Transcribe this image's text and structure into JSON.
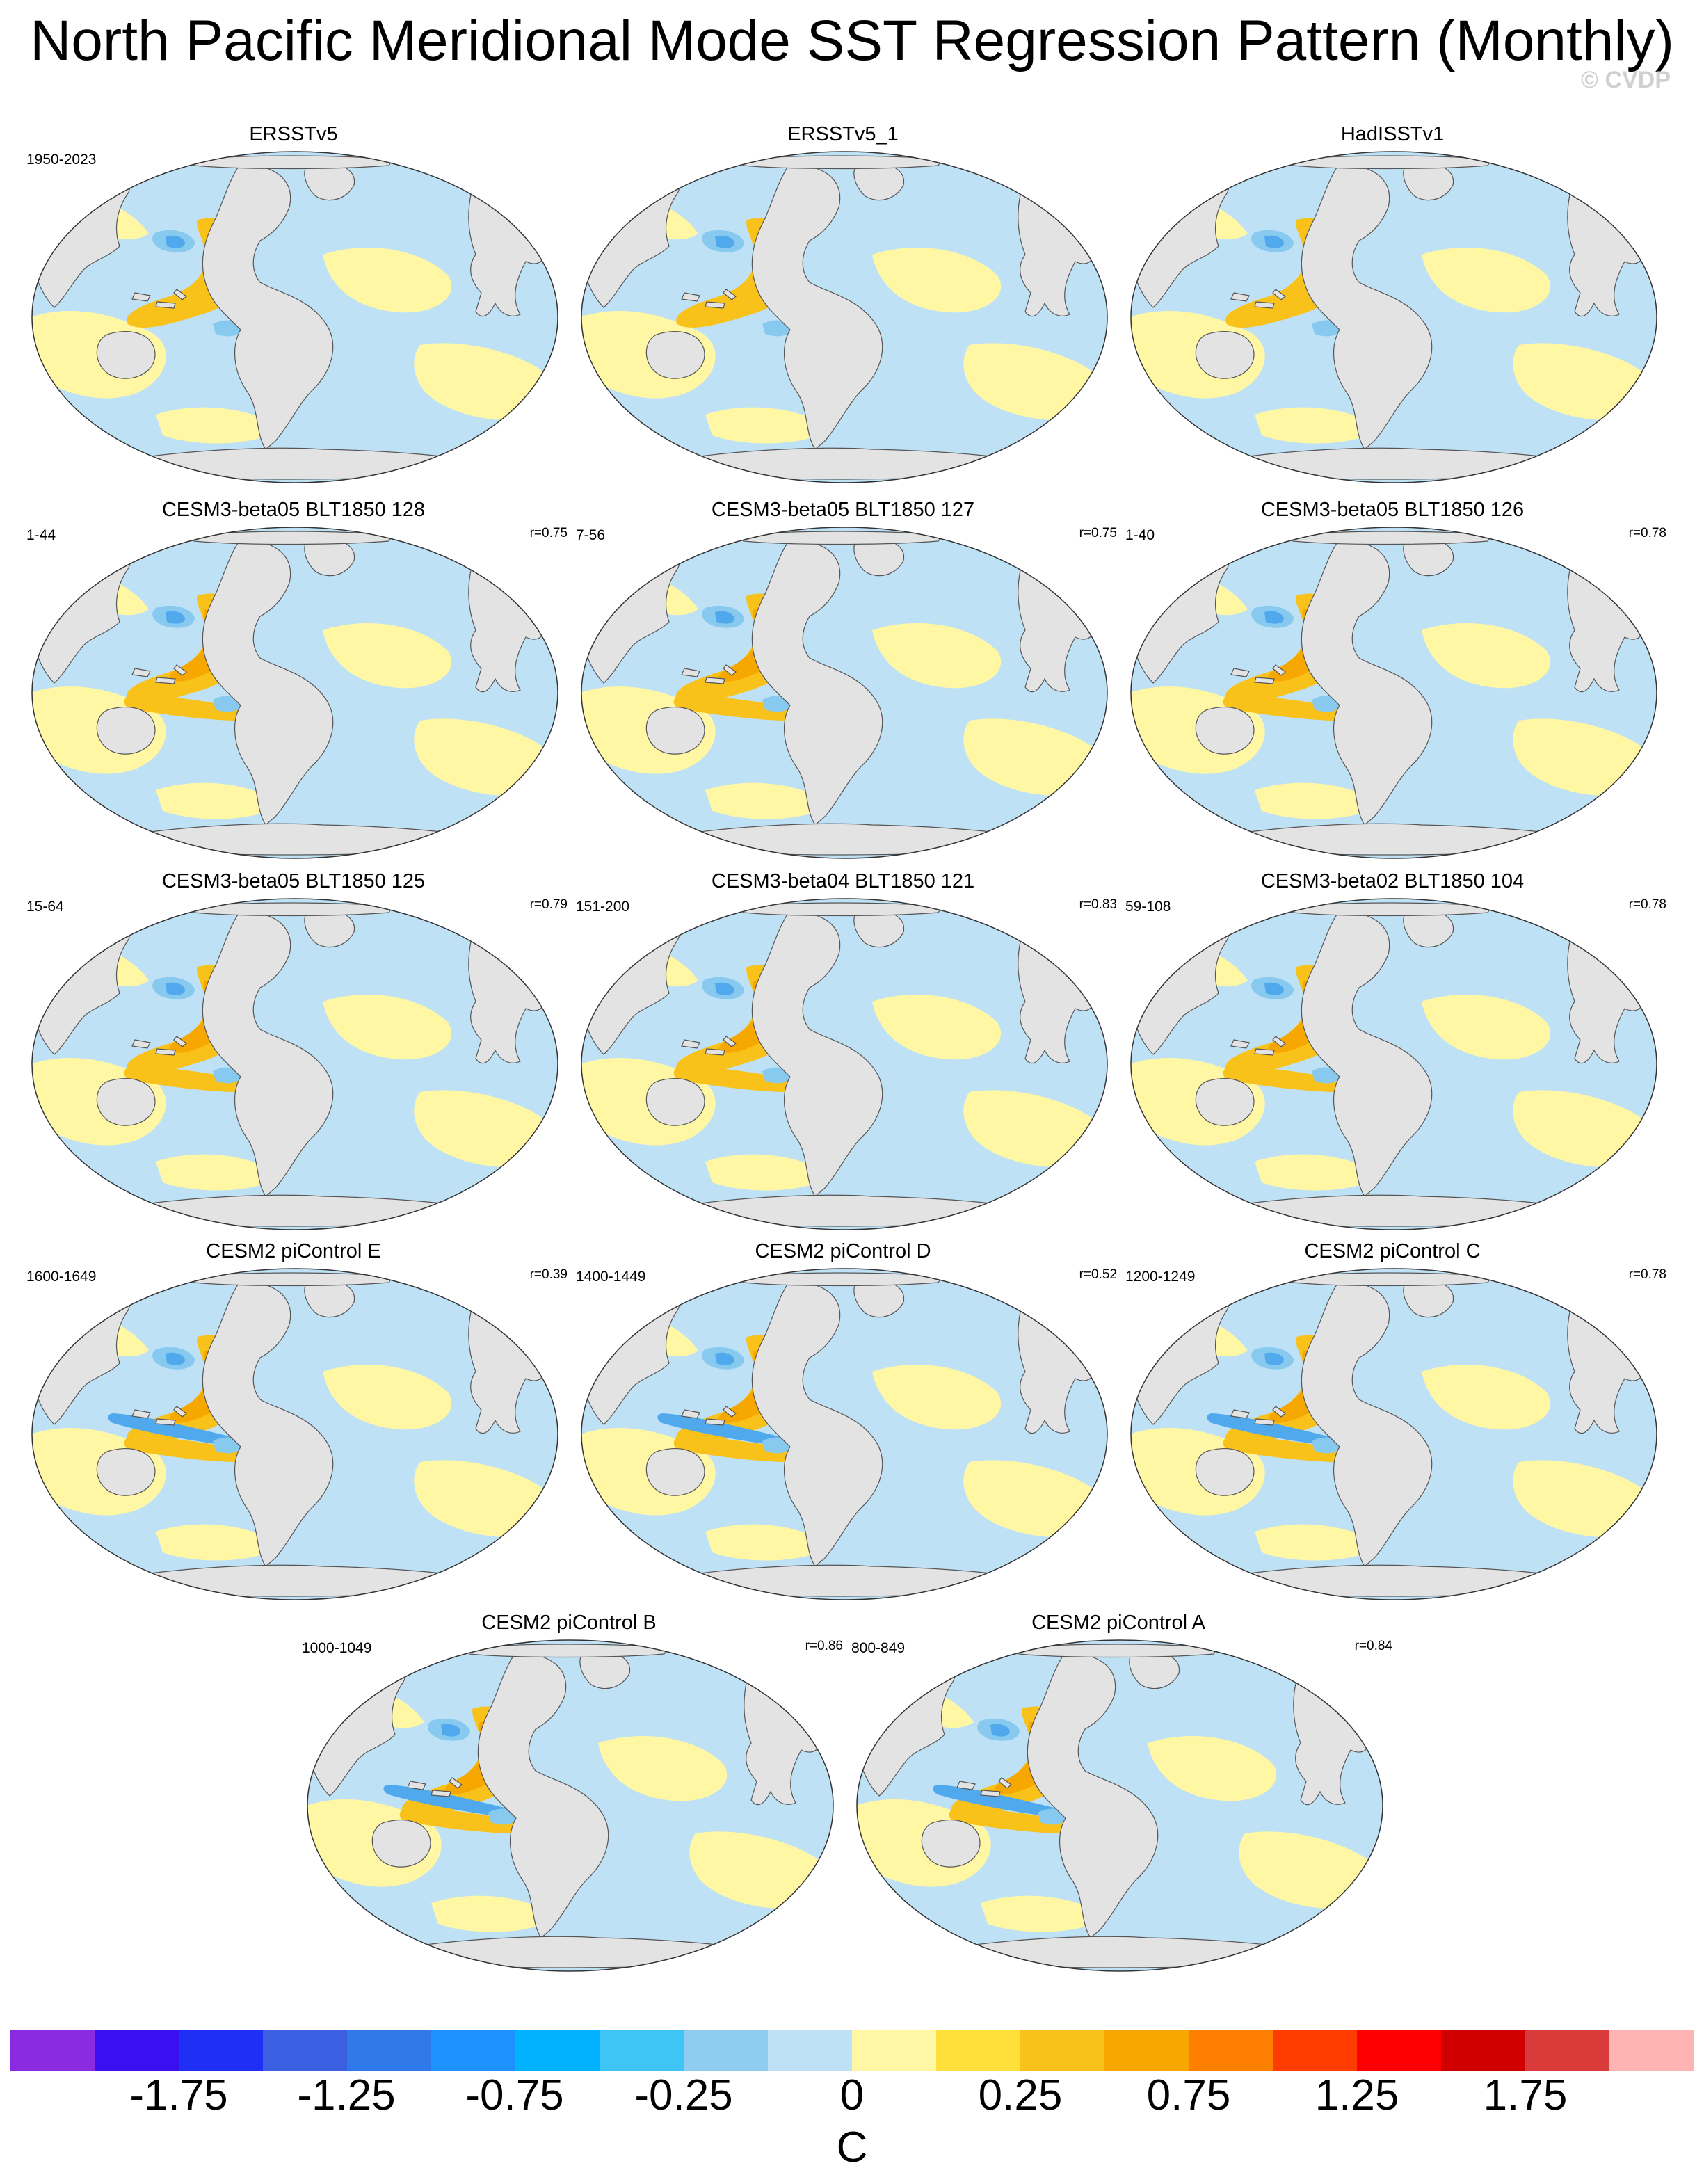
{
  "title": "North Pacific Meridional Mode SST Regression Pattern (Monthly)",
  "watermark": "© CVDP",
  "palette": {
    "land": "#e3e3e3",
    "ocean_neg": "#bfe1f6",
    "ocean_pos": "#fff7a3",
    "warm": "#f9c21a",
    "warm_strong": "#f7a800",
    "hot": "#f28c00",
    "cool": "#87c9ef",
    "cold": "#4fa9ec"
  },
  "panels": [
    {
      "id": "p1",
      "title": "ERSSTv5",
      "period": "1950-2023",
      "corr": "",
      "pattern": "obs"
    },
    {
      "id": "p2",
      "title": "ERSSTv5_1",
      "period": "",
      "corr": "",
      "pattern": "obs"
    },
    {
      "id": "p3",
      "title": "HadISSTv1",
      "period": "",
      "corr": "",
      "pattern": "obs"
    },
    {
      "id": "p4",
      "title": "CESM3-beta05 BLT1850 128",
      "period": "1-44",
      "corr": "r=0.75",
      "pattern": "model"
    },
    {
      "id": "p5",
      "title": "CESM3-beta05 BLT1850 127",
      "period": "7-56",
      "corr": "r=0.75",
      "pattern": "model"
    },
    {
      "id": "p6",
      "title": "CESM3-beta05 BLT1850 126",
      "period": "1-40",
      "corr": "r=0.78",
      "pattern": "model"
    },
    {
      "id": "p7",
      "title": "CESM3-beta05 BLT1850 125",
      "period": "15-64",
      "corr": "r=0.79",
      "pattern": "model_strong"
    },
    {
      "id": "p8",
      "title": "CESM3-beta04 BLT1850 121",
      "period": "151-200",
      "corr": "r=0.83",
      "pattern": "model_strong"
    },
    {
      "id": "p9",
      "title": "CESM3-beta02 BLT1850 104",
      "period": "59-108",
      "corr": "r=0.78",
      "pattern": "model_strong"
    },
    {
      "id": "p10",
      "title": "CESM2 piControl E",
      "period": "1600-1649",
      "corr": "r=0.39",
      "pattern": "cesm2"
    },
    {
      "id": "p11",
      "title": "CESM2 piControl D",
      "period": "1400-1449",
      "corr": "r=0.52",
      "pattern": "cesm2"
    },
    {
      "id": "p12",
      "title": "CESM2 piControl C",
      "period": "1200-1249",
      "corr": "r=0.78",
      "pattern": "cesm2"
    },
    {
      "id": "p13",
      "title": "CESM2 piControl B",
      "period": "1000-1049",
      "corr": "r=0.86",
      "pattern": "cesm2"
    },
    {
      "id": "p14",
      "title": "CESM2 piControl A",
      "period": "800-849",
      "corr": "r=0.84",
      "pattern": "cesm2"
    }
  ],
  "colorbar": {
    "colors": [
      "#8a2be2",
      "#3a10f0",
      "#1f2ff5",
      "#3a5fe0",
      "#2f7ae8",
      "#1e90ff",
      "#00b2ff",
      "#3ec4f5",
      "#8ecdf0",
      "#bfe1f6",
      "#fff7a3",
      "#ffdf3a",
      "#f9c21a",
      "#f7a800",
      "#ff7f00",
      "#ff3c00",
      "#ff0000",
      "#d00000",
      "#d93a3a",
      "#ffb3b3"
    ],
    "labels": [
      "-1.75",
      "-1.25",
      "-0.75",
      "-0.25",
      "0",
      "0.25",
      "0.75",
      "1.25",
      "1.75"
    ],
    "units": "C"
  }
}
